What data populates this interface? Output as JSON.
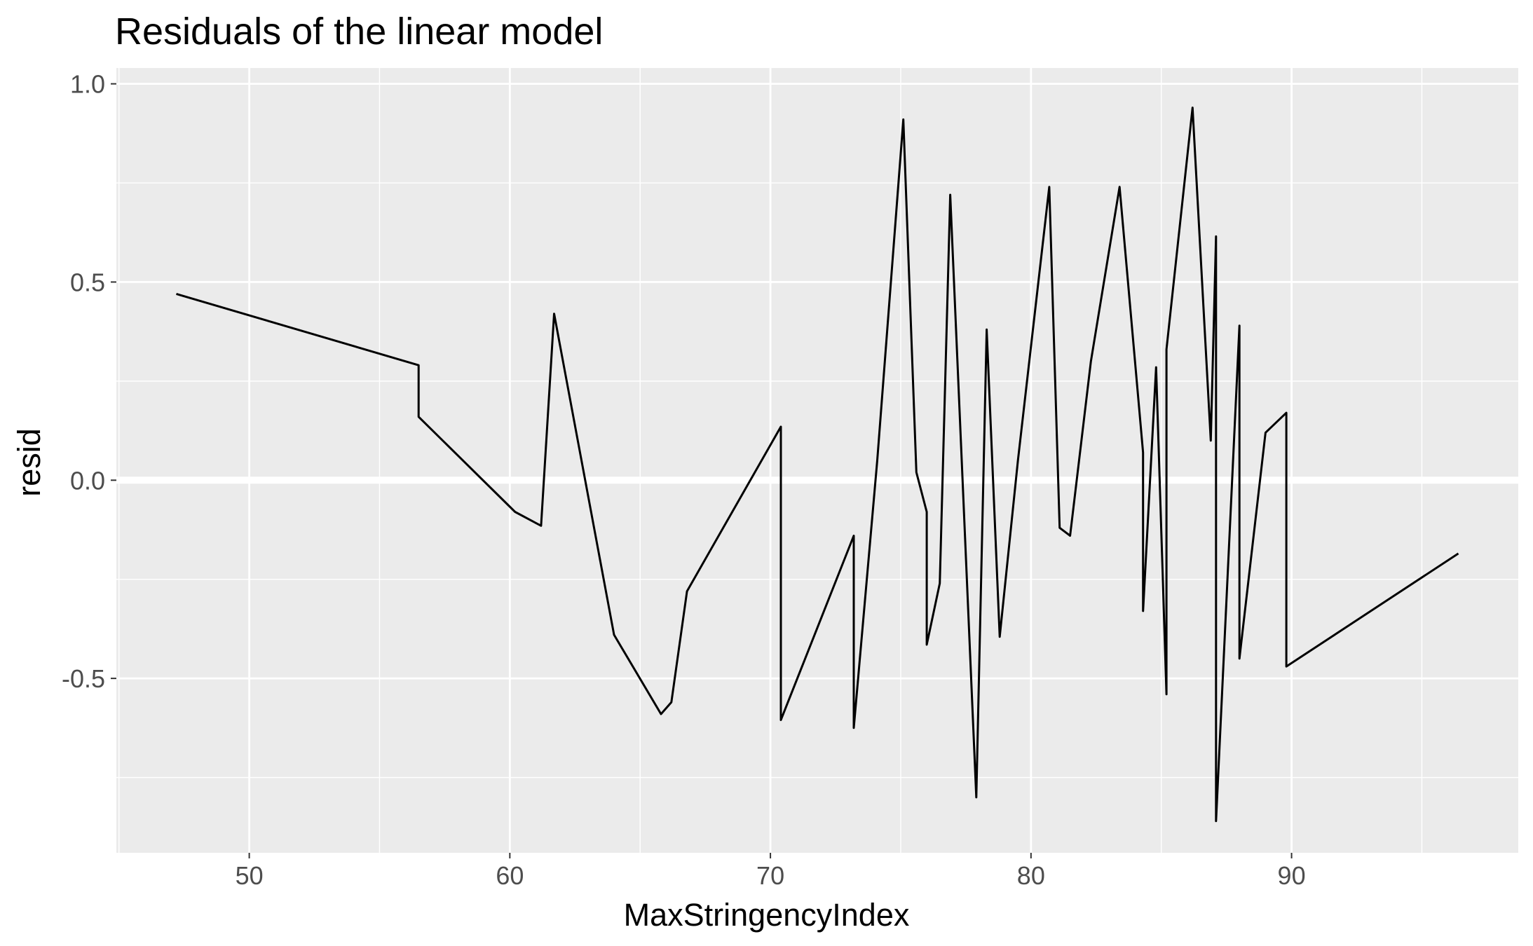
{
  "chart_data": {
    "type": "line",
    "title": "Residuals of the linear model",
    "xlabel": "MaxStringencyIndex",
    "ylabel": "resid",
    "xlim": [
      44.9,
      98.7
    ],
    "ylim": [
      -0.94,
      1.04
    ],
    "x_ticks": [
      50,
      60,
      70,
      80,
      90
    ],
    "x_tick_labels": [
      "50",
      "60",
      "70",
      "80",
      "90"
    ],
    "y_ticks": [
      -0.5,
      0.0,
      0.5,
      1.0
    ],
    "y_tick_labels": [
      "-0.5",
      "0.0",
      "0.5",
      "1.0"
    ],
    "grid": true,
    "background": "#EBEBEB",
    "grid_color": "#FFFFFF",
    "line_color": "#000000",
    "x": [
      47.2,
      56.5,
      56.5,
      60.2,
      61.2,
      61.7,
      64.0,
      65.8,
      66.2,
      66.8,
      70.4,
      70.4,
      73.2,
      73.2,
      74.1,
      75.1,
      75.6,
      76.0,
      76.0,
      76.5,
      76.9,
      77.9,
      78.3,
      78.8,
      79.5,
      80.7,
      81.1,
      81.5,
      82.3,
      83.4,
      84.3,
      84.3,
      84.8,
      85.2,
      85.2,
      86.2,
      86.9,
      87.1,
      87.1,
      88.0,
      88.0,
      89.0,
      89.8,
      89.8,
      96.4
    ],
    "values": [
      0.47,
      0.29,
      0.16,
      -0.08,
      -0.115,
      0.42,
      -0.39,
      -0.59,
      -0.56,
      -0.28,
      0.135,
      -0.605,
      -0.14,
      -0.625,
      0.05,
      0.91,
      0.02,
      -0.08,
      -0.415,
      -0.26,
      0.72,
      -0.8,
      0.38,
      -0.395,
      0.05,
      0.74,
      -0.12,
      -0.14,
      0.3,
      0.74,
      0.07,
      -0.33,
      0.285,
      -0.54,
      0.33,
      0.94,
      0.1,
      0.615,
      -0.86,
      0.39,
      -0.45,
      0.12,
      0.17,
      -0.47,
      -0.185
    ]
  }
}
